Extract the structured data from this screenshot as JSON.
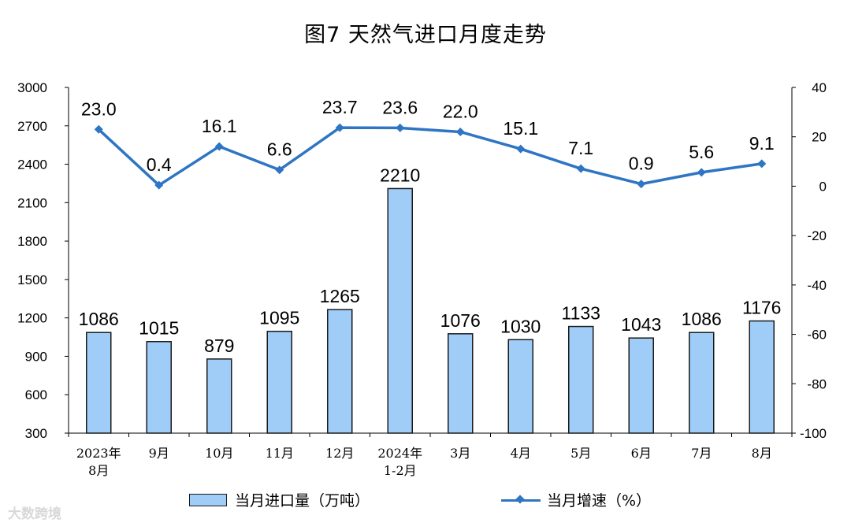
{
  "chart_data": {
    "type": "bar",
    "title": "图7  天然气进口月度走势",
    "categories": [
      [
        "2023年",
        "8月"
      ],
      [
        "9月"
      ],
      [
        "10月"
      ],
      [
        "11月"
      ],
      [
        "12月"
      ],
      [
        "2024年",
        "1-2月"
      ],
      [
        "3月"
      ],
      [
        "4月"
      ],
      [
        "5月"
      ],
      [
        "6月"
      ],
      [
        "7月"
      ],
      [
        "8月"
      ]
    ],
    "series": [
      {
        "name": "当月进口量（万吨）",
        "type": "bar",
        "axis": "left",
        "values": [
          1086,
          1015,
          879,
          1095,
          1265,
          2210,
          1076,
          1030,
          1133,
          1043,
          1086,
          1176
        ],
        "labels": [
          "1086",
          "1015",
          "879",
          "1095",
          "1265",
          "2210",
          "1076",
          "1030",
          "1133",
          "1043",
          "1086",
          "1176"
        ]
      },
      {
        "name": "当月增速（%）",
        "type": "line",
        "axis": "right",
        "values": [
          23.0,
          0.4,
          16.1,
          6.6,
          23.7,
          23.6,
          22.0,
          15.1,
          7.1,
          0.9,
          5.6,
          9.1
        ],
        "labels": [
          "23.0",
          "0.4",
          "16.1",
          "6.6",
          "23.7",
          "23.6",
          "22.0",
          "15.1",
          "7.1",
          "0.9",
          "5.6",
          "9.1"
        ]
      }
    ],
    "y_left": {
      "ylim": [
        300,
        3000
      ],
      "ticks": [
        300,
        600,
        900,
        1200,
        1500,
        1800,
        2100,
        2400,
        2700,
        3000
      ]
    },
    "y_right": {
      "ylim": [
        -100,
        40
      ],
      "ticks": [
        -100,
        -80,
        -60,
        -40,
        -20,
        0,
        20,
        40
      ]
    },
    "grid": false,
    "legend_placement": "bottom",
    "colors": {
      "bar_fill": "#9fcdf7",
      "bar_stroke": "#1a1a1a",
      "line": "#2e75c3"
    }
  },
  "watermark": "大数跨境"
}
